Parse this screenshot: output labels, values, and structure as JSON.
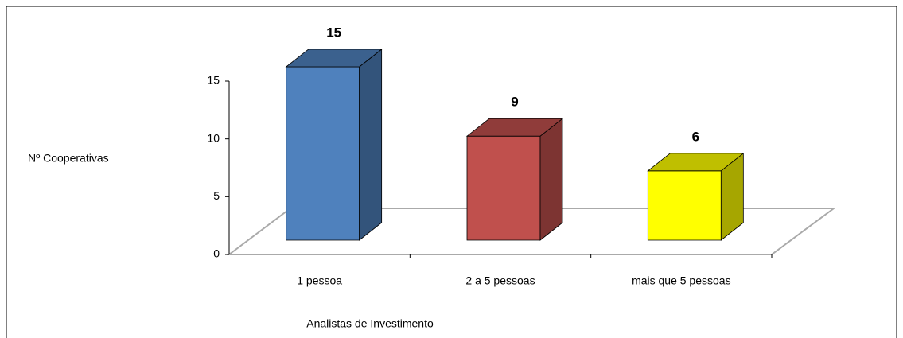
{
  "chart_data": {
    "type": "bar3d",
    "categories": [
      "1 pessoa",
      "2 a 5 pessoas",
      "mais que 5 pessoas"
    ],
    "values": [
      15,
      9,
      6
    ],
    "colors": [
      "#4f81bd",
      "#c0504d",
      "#ffff00"
    ],
    "ylim": [
      0,
      15
    ],
    "yticks": [
      0,
      5,
      10,
      15
    ],
    "ylabel": "Nº Cooperativas",
    "xlabel": "Analistas de Investimento"
  }
}
